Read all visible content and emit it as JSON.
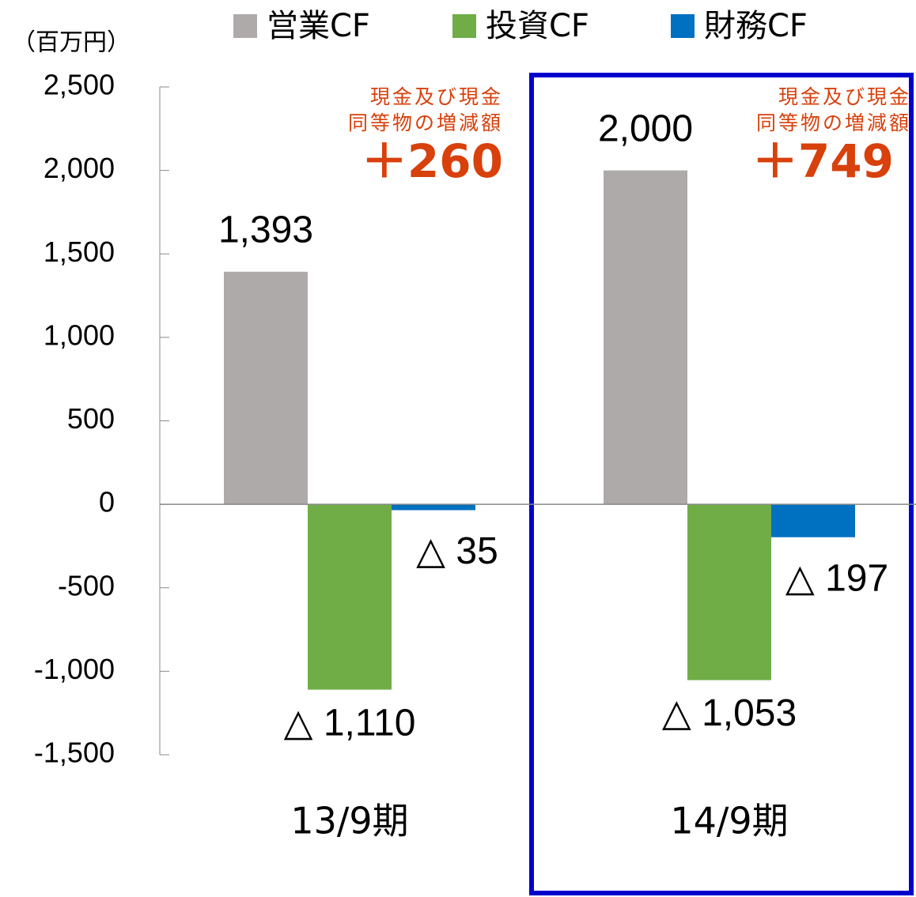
{
  "chart_data": {
    "type": "bar",
    "unit_label": "（百万円）",
    "categories": [
      "13/9期",
      "14/9期"
    ],
    "series": [
      {
        "name": "営業CF",
        "color": "#aeaaaa",
        "values": [
          1393,
          2000
        ],
        "value_labels": [
          "1,393",
          "2,000"
        ]
      },
      {
        "name": "投資CF",
        "color": "#70ad47",
        "values": [
          -1110,
          -1053
        ],
        "value_labels": [
          "△ 1,110",
          "△ 1,053"
        ]
      },
      {
        "name": "財務CF",
        "color": "#0070c0",
        "values": [
          -35,
          -197
        ],
        "value_labels": [
          "△ 35",
          "△ 197"
        ]
      }
    ],
    "ylim": [
      -1500,
      2500
    ],
    "yticks": [
      {
        "value": -1500,
        "label": "-1,500"
      },
      {
        "value": -1000,
        "label": "-1,000"
      },
      -500,
      0,
      500,
      {
        "value": 1000,
        "label": "1,000"
      },
      {
        "value": 1500,
        "label": "1,500"
      },
      {
        "value": 2000,
        "label": "2,000"
      },
      {
        "value": 2500,
        "label": "2,500"
      }
    ],
    "annotations": [
      {
        "lines": [
          "現金及び現金",
          "同等物の増減額"
        ],
        "amount": "＋260"
      },
      {
        "lines": [
          "現金及び現金",
          "同等物の増減額"
        ],
        "amount": "＋749"
      }
    ]
  }
}
